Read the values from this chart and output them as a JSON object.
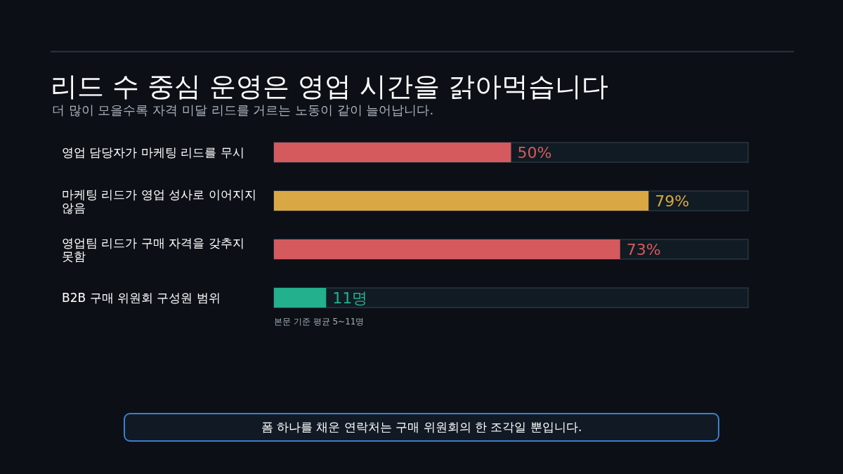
{
  "chart_data": {
    "type": "bar",
    "orientation": "horizontal",
    "title": "리드 수 중심 운영은 영업 시간을 갉아먹습니다",
    "subtitle": "더 많이 모을수록 자격 미달 리드를 거르는 노동이 같이 늘어납니다.",
    "categories": [
      "영업 담당자가 마케팅 리드를 무시",
      "마케팅 리드가 영업 성사로 이어지지 않음",
      "영업팀 리드가 구매 자격을 갖추지 못함",
      "B2B 구매 위원회 구성원 범위"
    ],
    "values": [
      50,
      79,
      73,
      11
    ],
    "value_labels": [
      "50%",
      "79%",
      "73%",
      "11명"
    ],
    "colors": [
      "#d45a5e",
      "#d9a844",
      "#d45a5e",
      "#23b08c"
    ],
    "xlim": [
      0,
      100
    ],
    "annotations": [
      "본문 기준 평균 5~11명",
      "폼 하나를 채운 연락처는 구매 위원회의 한 조각일 뿐입니다."
    ]
  }
}
